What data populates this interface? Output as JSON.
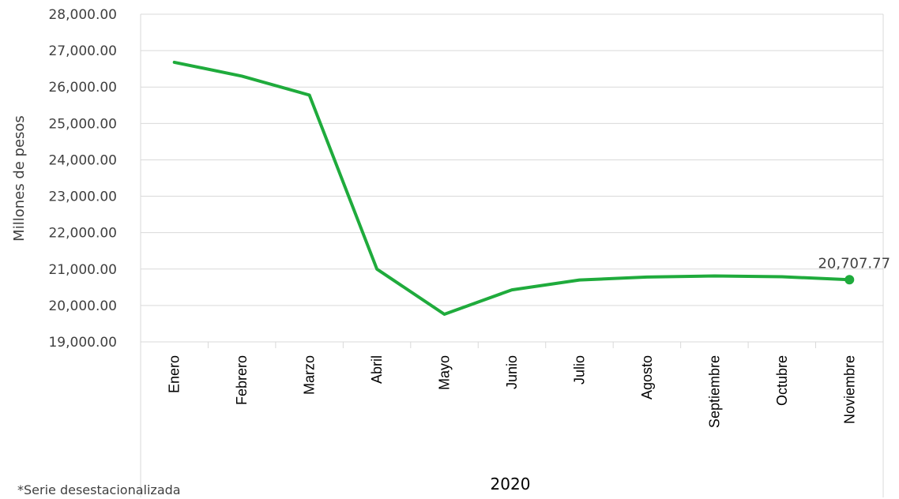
{
  "chart_data": {
    "type": "line",
    "categories": [
      "Enero",
      "Febrero",
      "Marzo",
      "Abril",
      "Mayo",
      "Junio",
      "Julio",
      "Agosto",
      "Septiembre",
      "Octubre",
      "Noviembre"
    ],
    "series": [
      {
        "values": [
          26680,
          26300,
          25780,
          21000,
          19760,
          20430,
          20700,
          20780,
          20810,
          20790,
          20707.77
        ]
      }
    ],
    "ylabel": "Millones de pesos",
    "xlabel": "2020",
    "ylim": [
      19000,
      28000
    ],
    "yticks": [
      "19,000.00",
      "20,000.00",
      "21,000.00",
      "22,000.00",
      "23,000.00",
      "24,000.00",
      "25,000.00",
      "26,000.00",
      "27,000.00",
      "28,000.00"
    ],
    "last_label": "20,707.77",
    "line_color": "#1fab3c",
    "grid": true
  },
  "footnote": "*Serie desestacionalizada"
}
